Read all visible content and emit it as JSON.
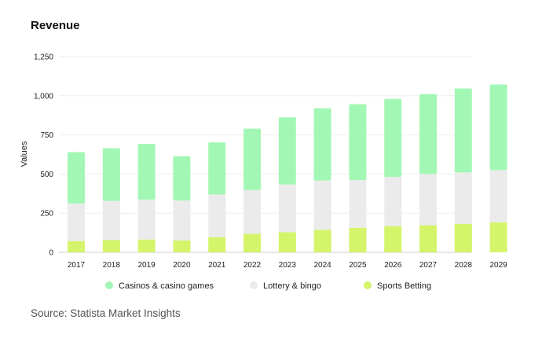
{
  "chart_data": {
    "type": "bar",
    "stacked": true,
    "title": "Revenue",
    "ylabel": "Values",
    "xlabel": "",
    "ylim": [
      0,
      1250
    ],
    "yticks": [
      "0",
      "250",
      "500",
      "750",
      "1,000",
      "1,250"
    ],
    "ytick_values": [
      0,
      250,
      500,
      750,
      1000,
      1250
    ],
    "grid": true,
    "legend_position": "bottom",
    "categories": [
      "2017",
      "2018",
      "2019",
      "2020",
      "2021",
      "2022",
      "2023",
      "2024",
      "2025",
      "2026",
      "2027",
      "2028",
      "2029"
    ],
    "series": [
      {
        "name": "Sports Betting",
        "color": "#d4f46a",
        "values": [
          72,
          78,
          82,
          76,
          97,
          118,
          128,
          143,
          157,
          167,
          173,
          182,
          192
        ]
      },
      {
        "name": "Lottery & bingo",
        "color": "#ebebeb",
        "values": [
          240,
          250,
          255,
          255,
          272,
          280,
          305,
          315,
          305,
          315,
          327,
          328,
          333
        ]
      },
      {
        "name": "Casinos & casino games",
        "color": "#a3f7b5",
        "values": [
          328,
          337,
          356,
          283,
          333,
          392,
          429,
          462,
          484,
          498,
          510,
          537,
          547
        ]
      }
    ],
    "legend_order": [
      "Casinos & casino games",
      "Lottery & bingo",
      "Sports Betting"
    ]
  },
  "source": "Source: Statista Market Insights"
}
